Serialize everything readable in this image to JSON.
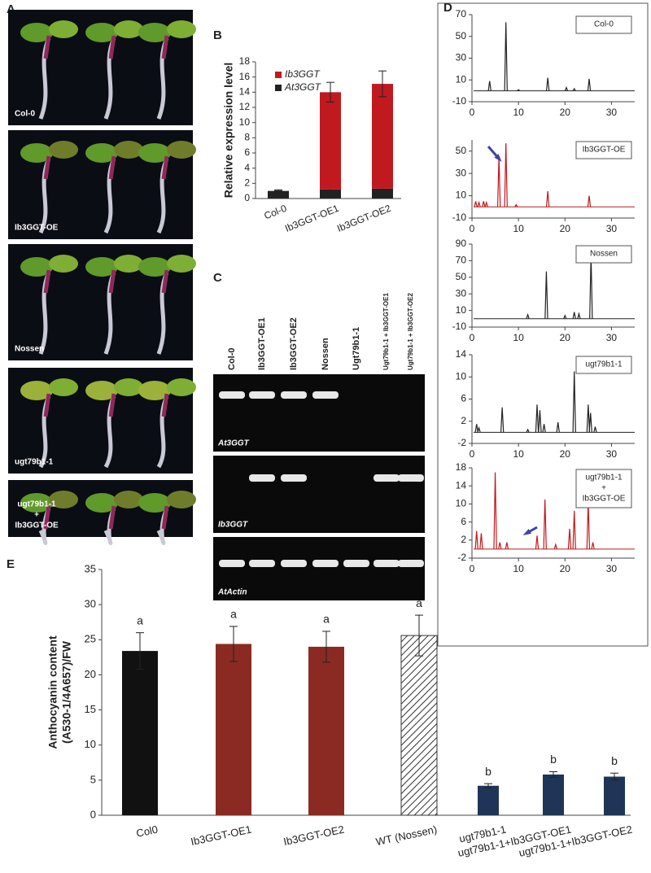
{
  "photo_panel": {
    "letter": "A",
    "labels": [
      [
        "Col-0"
      ],
      [
        "Ib3GGT-OE"
      ],
      [
        "Nossen"
      ],
      [
        "ugt79b1-1"
      ],
      [
        "ugt79b1-1",
        "+",
        "Ib3GGT-OE"
      ]
    ]
  },
  "gel_panel": {
    "letter": "C",
    "lanes": [
      "Col-0",
      "Ib3GGT-OE1",
      "Ib3GGT-OE2",
      "Nossen",
      "Ugt79b1-1",
      "Ugt79b1-1 + Ib3GGT-OE1",
      "Ugt79b1-1 + Ib3GGT-OE2"
    ],
    "genes": [
      "At3GGT",
      "Ib3GGT",
      "AtActin"
    ]
  },
  "chart_data": [
    {
      "type": "bar",
      "panel": "B",
      "stacked": true,
      "ylabel": "Relative expression level",
      "categories": [
        "Col-0",
        "Ib3GGT-OE1",
        "Ib3GGT-OE2"
      ],
      "series": [
        {
          "name": "At3GGT",
          "color": "#222222",
          "values": [
            1.0,
            1.2,
            1.3
          ],
          "errors": [
            0.15,
            0.2,
            0.2
          ]
        },
        {
          "name": "Ib3GGT",
          "color": "#c0191e",
          "values": [
            0,
            12.8,
            13.8
          ],
          "errors": [
            0,
            1.3,
            1.7
          ]
        }
      ],
      "ylim": [
        0,
        18
      ],
      "yticks": [
        0,
        2,
        4,
        6,
        8,
        10,
        12,
        14,
        16,
        18
      ]
    },
    {
      "type": "chromatogram",
      "panel": "D",
      "label": [
        "Col-0"
      ],
      "color": "#222222",
      "x": [
        3.8,
        7.3,
        10,
        16.3,
        20.3,
        22,
        25.2
      ],
      "values": [
        9,
        63,
        1,
        12,
        3,
        2,
        11
      ],
      "xlim": [
        0,
        35
      ],
      "xticks": [
        0,
        10,
        20,
        30
      ],
      "ylim": [
        -10,
        70
      ],
      "yticks": [
        -10,
        10,
        30,
        50,
        70
      ]
    },
    {
      "type": "chromatogram",
      "label": [
        "Ib3GGT-OE"
      ],
      "color": "#c0191e",
      "x": [
        0.8,
        1.5,
        2.5,
        3.1,
        5.8,
        7.3,
        9.5,
        16.3,
        25.2
      ],
      "values": [
        5,
        4,
        5,
        4,
        45,
        57,
        2,
        14,
        10
      ],
      "xlim": [
        0,
        35
      ],
      "xticks": [
        0,
        10,
        20,
        30
      ],
      "ylim": [
        -10,
        60
      ],
      "yticks": [
        -10,
        10,
        30,
        50
      ]
    },
    {
      "type": "chromatogram",
      "label": [
        "Nossen"
      ],
      "color": "#222222",
      "x": [
        12,
        16,
        20,
        22,
        23,
        25.6
      ],
      "values": [
        5,
        57,
        4,
        8,
        6,
        77
      ],
      "xlim": [
        0,
        35
      ],
      "xticks": [
        0,
        10,
        20,
        30
      ],
      "ylim": [
        -10,
        90
      ],
      "yticks": [
        -10,
        10,
        30,
        50,
        70,
        90
      ]
    },
    {
      "type": "chromatogram",
      "label": [
        "ugt79b1-1"
      ],
      "color": "#222222",
      "x": [
        1,
        1.5,
        6.5,
        12,
        14,
        14.6,
        15.5,
        18.5,
        22,
        25,
        25.5,
        26.5
      ],
      "values": [
        1.5,
        0.8,
        4.5,
        0.5,
        5,
        4,
        1.5,
        1.8,
        11,
        5,
        3.5,
        1
      ],
      "xlim": [
        0,
        35
      ],
      "xticks": [
        0,
        10,
        20,
        30
      ],
      "ylim": [
        -2,
        14
      ],
      "yticks": [
        -2,
        2,
        6,
        10,
        14
      ]
    },
    {
      "type": "chromatogram",
      "label": [
        "ugt79b1-1",
        "+",
        "Ib3GGT-OE"
      ],
      "color": "#c0191e",
      "x": [
        1,
        2,
        5,
        6,
        7.5,
        14,
        15.7,
        18,
        21,
        22,
        25,
        26
      ],
      "values": [
        4,
        3.5,
        17,
        1.5,
        1.5,
        3,
        11,
        1,
        4.5,
        8.5,
        10.5,
        1.5
      ],
      "xlim": [
        0,
        35
      ],
      "xticks": [
        0,
        10,
        20,
        30
      ],
      "ylim": [
        -2,
        18
      ],
      "yticks": [
        -2,
        2,
        6,
        10,
        14,
        18
      ]
    },
    {
      "type": "bar",
      "panel": "E",
      "ylabel": [
        "Anthocyanin content",
        "(A530-1/4A657)/FW"
      ],
      "categories": [
        "Col0",
        "Ib3GGT-OE1",
        "Ib3GGT-OE2",
        "WT (Nossen)",
        "ugt79b1-1",
        "ugt79b1-1+Ib3GGT-OE1",
        "ugt79b1-1+Ib3GGT-OE2"
      ],
      "values": [
        23.4,
        24.4,
        24.0,
        25.6,
        4.2,
        5.8,
        5.5
      ],
      "errors": [
        2.6,
        2.5,
        2.2,
        2.9,
        0.3,
        0.4,
        0.5
      ],
      "colors": [
        "#111111",
        "#8b2a23",
        "#8b2a23",
        "#ffffff",
        "#1f3557",
        "#1f3557",
        "#1f3557"
      ],
      "hatch": [
        false,
        false,
        false,
        true,
        false,
        false,
        false
      ],
      "annotations": [
        "a",
        "a",
        "a",
        "a",
        "b",
        "b",
        "b"
      ],
      "ylim": [
        0,
        35
      ],
      "yticks": [
        0,
        5,
        10,
        15,
        20,
        25,
        30,
        35
      ]
    }
  ]
}
